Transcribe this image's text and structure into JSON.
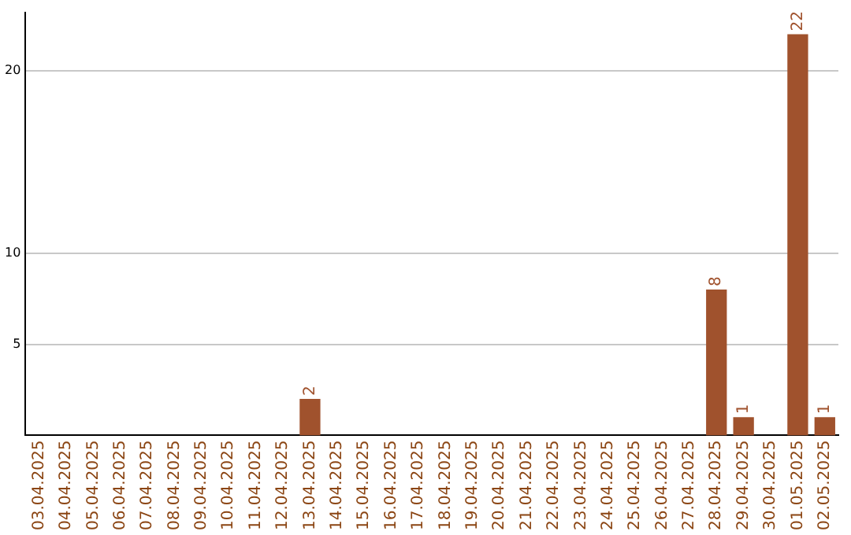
{
  "chart_data": {
    "type": "bar",
    "categories": [
      "03.04.2025",
      "04.04.2025",
      "05.04.2025",
      "06.04.2025",
      "07.04.2025",
      "08.04.2025",
      "09.04.2025",
      "10.04.2025",
      "11.04.2025",
      "12.04.2025",
      "13.04.2025",
      "14.04.2025",
      "15.04.2025",
      "16.04.2025",
      "17.04.2025",
      "18.04.2025",
      "19.04.2025",
      "20.04.2025",
      "21.04.2025",
      "22.04.2025",
      "23.04.2025",
      "24.04.2025",
      "25.04.2025",
      "26.04.2025",
      "27.04.2025",
      "28.04.2025",
      "29.04.2025",
      "30.04.2025",
      "01.05.2025",
      "02.05.2025"
    ],
    "values": [
      0,
      0,
      0,
      0,
      0,
      0,
      0,
      0,
      0,
      0,
      2,
      0,
      0,
      0,
      0,
      0,
      0,
      0,
      0,
      0,
      0,
      0,
      0,
      0,
      0,
      8,
      1,
      0,
      22,
      1
    ],
    "value_labels": [
      null,
      null,
      null,
      null,
      null,
      null,
      null,
      null,
      null,
      null,
      "2",
      null,
      null,
      null,
      null,
      null,
      null,
      null,
      null,
      null,
      null,
      null,
      null,
      null,
      null,
      "8",
      "1",
      null,
      "22",
      "1"
    ],
    "color": "#a0522d",
    "ylim": [
      0,
      23.2
    ],
    "yticks": [
      5,
      10,
      20
    ],
    "grid": "y"
  }
}
